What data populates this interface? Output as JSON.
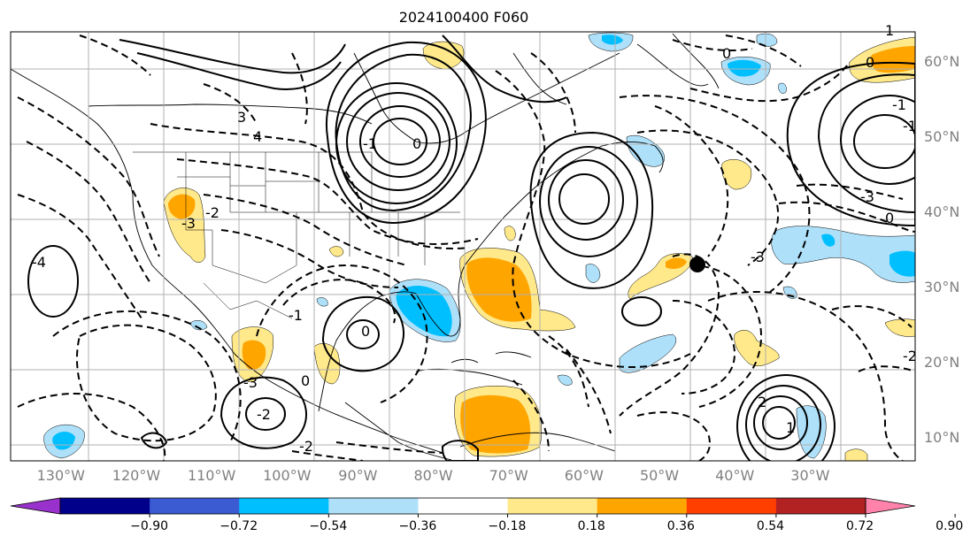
{
  "title": "2024100400 F060",
  "map": {
    "lon_labels": [
      "130°W",
      "120°W",
      "110°W",
      "100°W",
      "90°W",
      "80°W",
      "70°W",
      "60°W",
      "50°W",
      "40°W",
      "30°W"
    ],
    "lat_labels": [
      "60°N",
      "50°N",
      "40°N",
      "30°N",
      "20°N",
      "10°N"
    ],
    "lon_values": [
      -130,
      -120,
      -110,
      -100,
      -90,
      -80,
      -70,
      -60,
      -50,
      -40,
      -30
    ],
    "lat_values": [
      60,
      50,
      40,
      30,
      20,
      10
    ],
    "extent": {
      "lon_min": -137,
      "lon_max": -17,
      "lat_min": 7,
      "lat_max": 64
    },
    "marker": {
      "name": "storm-position-marker",
      "lon": -51,
      "lat": 33.5
    },
    "contour_labels": [
      "3",
      "4",
      "-1",
      "0",
      "-2",
      "-3",
      "-4",
      "-1",
      "0",
      "-3",
      "-2",
      "1",
      "2",
      "-2",
      "0",
      "1",
      "0",
      "-1",
      "0",
      "-3",
      "-2",
      "0",
      "-1",
      "-3"
    ]
  },
  "colorbar": {
    "labels": [
      "−0.90",
      "−0.72",
      "−0.54",
      "−0.36",
      "−0.18",
      "0.18",
      "0.36",
      "0.54",
      "0.72",
      "0.90"
    ],
    "colors": [
      "#9932cc",
      "#00008b",
      "#3a5bd1",
      "#00bfff",
      "#aee0fa",
      "#ffffff",
      "#ffe98a",
      "#ffa500",
      "#ff3f00",
      "#b22222",
      "#ff82ab"
    ]
  }
}
